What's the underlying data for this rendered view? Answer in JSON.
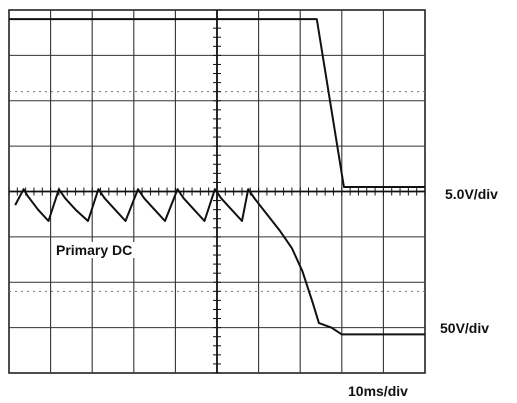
{
  "chart_data": {
    "type": "line",
    "title": "",
    "xlabel": "",
    "ylabel": "",
    "grid": true,
    "divisions": {
      "x": 10,
      "y": 8
    },
    "xlim": [
      0,
      10
    ],
    "ylim": [
      0,
      8
    ],
    "series": [
      {
        "name": "",
        "color": "#111111",
        "points": [
          [
            0,
            7.8
          ],
          [
            7.4,
            7.8
          ],
          [
            8.05,
            4.1
          ],
          [
            10,
            4.1
          ]
        ]
      },
      {
        "name": "Primary DC",
        "color": "#111111",
        "points": [
          [
            0.15,
            3.7
          ],
          [
            0.35,
            4.05
          ],
          [
            0.45,
            3.9
          ],
          [
            0.7,
            3.6
          ],
          [
            0.95,
            3.35
          ],
          [
            1.2,
            4.05
          ],
          [
            1.35,
            3.85
          ],
          [
            1.6,
            3.6
          ],
          [
            1.9,
            3.35
          ],
          [
            2.15,
            4.05
          ],
          [
            2.3,
            3.85
          ],
          [
            2.55,
            3.6
          ],
          [
            2.8,
            3.35
          ],
          [
            3.1,
            4.05
          ],
          [
            3.25,
            3.85
          ],
          [
            3.5,
            3.6
          ],
          [
            3.75,
            3.35
          ],
          [
            4.05,
            4.05
          ],
          [
            4.2,
            3.85
          ],
          [
            4.45,
            3.6
          ],
          [
            4.7,
            3.35
          ],
          [
            4.95,
            4.05
          ],
          [
            5.1,
            3.85
          ],
          [
            5.35,
            3.6
          ],
          [
            5.6,
            3.35
          ],
          [
            5.75,
            4.05
          ],
          [
            5.9,
            3.85
          ],
          [
            6.2,
            3.5
          ],
          [
            6.5,
            3.15
          ],
          [
            6.8,
            2.75
          ],
          [
            7.05,
            2.25
          ],
          [
            7.3,
            1.55
          ],
          [
            7.45,
            1.1
          ],
          [
            7.75,
            1.0
          ],
          [
            8.0,
            0.85
          ],
          [
            8.5,
            0.85
          ],
          [
            10,
            0.85
          ]
        ]
      }
    ],
    "labels": {
      "primary": "Primary DC",
      "ch1_scale": "5.0V/div",
      "ch2_scale": "50V/div",
      "time_scale": "10ms/div"
    }
  }
}
